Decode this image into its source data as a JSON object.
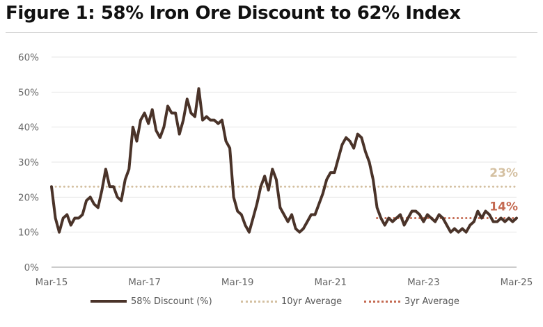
{
  "title": "Figure 1: 58% Iron Ore Discount to 62% Index",
  "colors": {
    "discount": "#4a3329",
    "avg10": "#d4c0a1",
    "avg3": "#c46a52",
    "grid": "#e4e4e4"
  },
  "chart_data": {
    "type": "line",
    "title": "Figure 1: 58% Iron Ore Discount to 62% Index",
    "xlabel": "",
    "ylabel": "",
    "x_range": [
      "2015-03",
      "2025-03"
    ],
    "x_ticks": [
      "Mar-15",
      "Mar-17",
      "Mar-19",
      "Mar-21",
      "Mar-23",
      "Mar-25"
    ],
    "ylim": [
      0,
      60
    ],
    "y_ticks": [
      "0%",
      "10%",
      "20%",
      "30%",
      "40%",
      "50%",
      "60%"
    ],
    "grid": true,
    "legend_position": "bottom",
    "series": [
      {
        "name": "58% Discount (%)",
        "style": "solid",
        "x": [
          "2015-03",
          "2015-04",
          "2015-05",
          "2015-06",
          "2015-07",
          "2015-08",
          "2015-09",
          "2015-10",
          "2015-11",
          "2015-12",
          "2016-01",
          "2016-02",
          "2016-03",
          "2016-04",
          "2016-05",
          "2016-06",
          "2016-07",
          "2016-08",
          "2016-09",
          "2016-10",
          "2016-11",
          "2016-12",
          "2017-01",
          "2017-02",
          "2017-03",
          "2017-04",
          "2017-05",
          "2017-06",
          "2017-07",
          "2017-08",
          "2017-09",
          "2017-10",
          "2017-11",
          "2017-12",
          "2018-01",
          "2018-02",
          "2018-03",
          "2018-04",
          "2018-05",
          "2018-06",
          "2018-07",
          "2018-08",
          "2018-09",
          "2018-10",
          "2018-11",
          "2018-12",
          "2019-01",
          "2019-02",
          "2019-03",
          "2019-04",
          "2019-05",
          "2019-06",
          "2019-07",
          "2019-08",
          "2019-09",
          "2019-10",
          "2019-11",
          "2019-12",
          "2020-01",
          "2020-02",
          "2020-03",
          "2020-04",
          "2020-05",
          "2020-06",
          "2020-07",
          "2020-08",
          "2020-09",
          "2020-10",
          "2020-11",
          "2020-12",
          "2021-01",
          "2021-02",
          "2021-03",
          "2021-04",
          "2021-05",
          "2021-06",
          "2021-07",
          "2021-08",
          "2021-09",
          "2021-10",
          "2021-11",
          "2021-12",
          "2022-01",
          "2022-02",
          "2022-03",
          "2022-04",
          "2022-05",
          "2022-06",
          "2022-07",
          "2022-08",
          "2022-09",
          "2022-10",
          "2022-11",
          "2022-12",
          "2023-01",
          "2023-02",
          "2023-03",
          "2023-04",
          "2023-05",
          "2023-06",
          "2023-07",
          "2023-08",
          "2023-09",
          "2023-10",
          "2023-11",
          "2023-12",
          "2024-01",
          "2024-02",
          "2024-03",
          "2024-04",
          "2024-05",
          "2024-06",
          "2024-07",
          "2024-08",
          "2024-09",
          "2024-10",
          "2024-11",
          "2024-12",
          "2025-01",
          "2025-02",
          "2025-03"
        ],
        "values": [
          23,
          14,
          10,
          14,
          15,
          12,
          14,
          14,
          15,
          19,
          20,
          18,
          17,
          22,
          28,
          23,
          23,
          20,
          19,
          25,
          28,
          40,
          36,
          42,
          44,
          41,
          45,
          39,
          37,
          40,
          46,
          44,
          44,
          38,
          42,
          48,
          44,
          43,
          51,
          42,
          43,
          42,
          42,
          41,
          42,
          36,
          34,
          20,
          16,
          15,
          12,
          10,
          14,
          18,
          23,
          26,
          22,
          28,
          25,
          17,
          15,
          13,
          15,
          11,
          10,
          11,
          13,
          15,
          15,
          18,
          21,
          25,
          27,
          27,
          31,
          35,
          37,
          36,
          34,
          38,
          37,
          33,
          30,
          25,
          17,
          14,
          12,
          14,
          13,
          14,
          15,
          12,
          14,
          16,
          16,
          15,
          13,
          15,
          14,
          13,
          15,
          14,
          12,
          10,
          11,
          10,
          11,
          10,
          12,
          13,
          16,
          14,
          16,
          15,
          13,
          13,
          14,
          13,
          14,
          13,
          14
        ]
      },
      {
        "name": "10yr Average",
        "style": "dotted",
        "values": [
          23
        ]
      },
      {
        "name": "3yr Average",
        "style": "dotted",
        "x_start": "2022-03",
        "values": [
          14
        ]
      }
    ],
    "annotations": [
      {
        "text": "23%",
        "series": "10yr Average"
      },
      {
        "text": "14%",
        "series": "3yr Average"
      }
    ]
  },
  "legend": [
    {
      "label": "58% Discount (%)"
    },
    {
      "label": "10yr Average"
    },
    {
      "label": "3yr Average"
    }
  ]
}
